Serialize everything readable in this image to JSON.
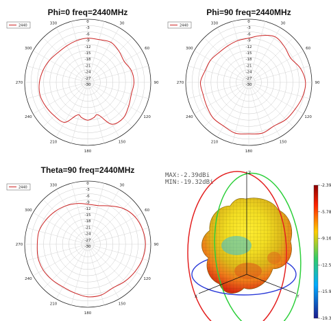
{
  "chart_data": [
    {
      "type": "polar",
      "title": "Phi=0 freq=2440MHz",
      "legend": [
        "2440"
      ],
      "legend_position": "top-left",
      "r_ticks": [
        "0",
        "-3",
        "-6",
        "-9",
        "-12",
        "-15",
        "-18",
        "-21",
        "-24",
        "-27",
        "-30"
      ],
      "r_range": [
        -30,
        0
      ],
      "angle_ticks": [
        "0",
        "30",
        "60",
        "90",
        "120",
        "150",
        "180",
        "210",
        "240",
        "270",
        "300",
        "330"
      ],
      "series": [
        {
          "color": "#cc2222",
          "theta": [
            0,
            15,
            30,
            45,
            60,
            75,
            90,
            105,
            120,
            135,
            150,
            160,
            165,
            170,
            180,
            190,
            195,
            200,
            210,
            225,
            240,
            255,
            270,
            285,
            300,
            315,
            330,
            345,
            360
          ],
          "r": [
            -9,
            -9,
            -8,
            -9,
            -10,
            -8.5,
            -8,
            -8.5,
            -7.5,
            -6,
            -7,
            -13,
            -14,
            -13,
            -12,
            -13,
            -14,
            -13,
            -8,
            -7.5,
            -7,
            -6.5,
            -7,
            -8,
            -9,
            -10,
            -10,
            -9.5,
            -9
          ]
        }
      ]
    },
    {
      "type": "polar",
      "title": "Phi=90 freq=2440MHz",
      "legend": [
        "2440"
      ],
      "legend_position": "top-left",
      "r_ticks": [
        "0",
        "-3",
        "-6",
        "-9",
        "-12",
        "-15",
        "-18",
        "-21",
        "-24",
        "-27",
        "-30"
      ],
      "r_range": [
        -30,
        0
      ],
      "angle_ticks": [
        "0",
        "30",
        "60",
        "90",
        "120",
        "150",
        "180",
        "210",
        "240",
        "270",
        "300",
        "330"
      ],
      "series": [
        {
          "color": "#cc2222",
          "theta": [
            0,
            15,
            30,
            45,
            60,
            75,
            90,
            105,
            120,
            135,
            150,
            165,
            180,
            195,
            210,
            225,
            240,
            255,
            270,
            285,
            300,
            315,
            330,
            345,
            360
          ],
          "r": [
            -9,
            -7,
            -5,
            -6,
            -7,
            -4.5,
            -3,
            -3.5,
            -4.5,
            -5,
            -6,
            -5,
            -5.5,
            -5,
            -6,
            -6,
            -7,
            -7.5,
            -7,
            -8.5,
            -9,
            -10,
            -10,
            -9.5,
            -9
          ]
        }
      ]
    },
    {
      "type": "polar",
      "title": "Theta=90 freq=2440MHz",
      "legend": [
        "2440"
      ],
      "legend_position": "top-left",
      "r_ticks": [
        "0",
        "-3",
        "-6",
        "-9",
        "-12",
        "-15",
        "-18",
        "-21",
        "-24",
        "-27",
        "-30"
      ],
      "r_range": [
        -30,
        0
      ],
      "angle_ticks": [
        "0",
        "30",
        "60",
        "90",
        "120",
        "150",
        "180",
        "210",
        "240",
        "270",
        "300",
        "330"
      ],
      "series": [
        {
          "color": "#cc2222",
          "theta": [
            0,
            15,
            30,
            45,
            60,
            75,
            90,
            105,
            120,
            135,
            150,
            165,
            180,
            195,
            210,
            225,
            240,
            255,
            270,
            285,
            300,
            315,
            330,
            345,
            360
          ],
          "r": [
            -11,
            -11,
            -9,
            -6,
            -4,
            -3,
            -2.5,
            -3,
            -4,
            -5,
            -6,
            -5,
            -5,
            -6,
            -6.5,
            -6,
            -5.5,
            -5.5,
            -6,
            -6,
            -7,
            -8,
            -9,
            -10,
            -11
          ]
        }
      ]
    },
    {
      "type": "3d-surface",
      "annotations": [
        "MAX:-2.39dBi",
        "MIN:-19.32dBi"
      ],
      "axis_labels": [
        "Z",
        "X",
        "Y"
      ],
      "colorbar": {
        "ticks": [
          "-2.39",
          "-5.78",
          "-9.16",
          "-12.55",
          "-15.93",
          "-19.32"
        ],
        "range": [
          -19.32,
          -2.39
        ],
        "colors": [
          "#8b0000",
          "#ff3300",
          "#ffcc00",
          "#33cc66",
          "#00aaff",
          "#1a1a8c"
        ]
      }
    }
  ]
}
